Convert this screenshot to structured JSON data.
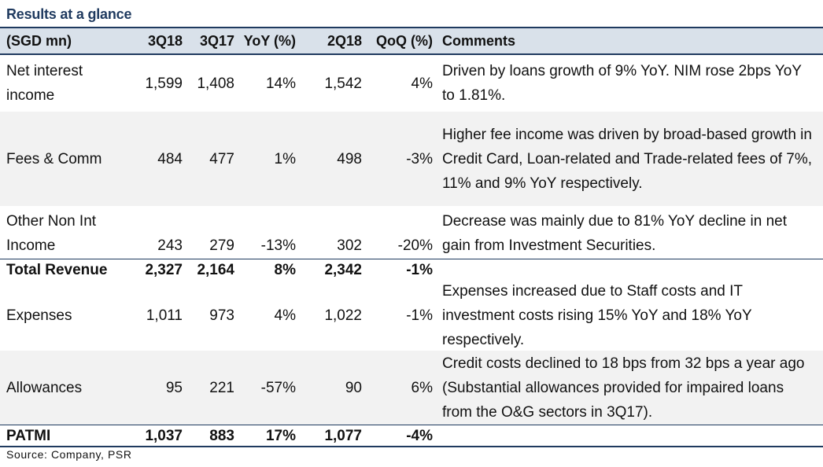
{
  "title": "Results at a glance",
  "header": {
    "label": "(SGD mn)",
    "col_3q18": "3Q18",
    "col_3q17": "3Q17",
    "col_yoy": "YoY (%)",
    "col_2q18": "2Q18",
    "col_qoq": "QoQ (%)",
    "col_comments": "Comments"
  },
  "rows": [
    {
      "label": "Net interest income",
      "q3_18": "1,599",
      "q3_17": "1,408",
      "yoy": "14%",
      "q2_18": "1,542",
      "qoq": "4%",
      "comment": "Driven by loans growth of 9% YoY. NIM rose 2bps YoY to 1.81%."
    },
    {
      "label": "Fees & Comm",
      "q3_18": "484",
      "q3_17": "477",
      "yoy": "1%",
      "q2_18": "498",
      "qoq": "-3%",
      "comment": "Higher fee income was driven by broad-based growth in Credit Card, Loan-related and Trade-related fees of 7%, 11% and 9% YoY respectively."
    },
    {
      "label": "Other Non Int Income",
      "q3_18": "243",
      "q3_17": "279",
      "yoy": "-13%",
      "q2_18": "302",
      "qoq": "-20%",
      "comment": "Decrease was mainly due to 81% YoY decline in net gain from Investment Securities."
    },
    {
      "label": "Total Revenue",
      "q3_18": "2,327",
      "q3_17": "2,164",
      "yoy": "8%",
      "q2_18": "2,342",
      "qoq": "-1%",
      "comment": ""
    },
    {
      "label": "Expenses",
      "q3_18": "1,011",
      "q3_17": "973",
      "yoy": "4%",
      "q2_18": "1,022",
      "qoq": "-1%",
      "comment": "Expenses increased due to Staff costs and IT investment costs rising 15% YoY and 18% YoY respectively."
    },
    {
      "label": "Allowances",
      "q3_18": "95",
      "q3_17": "221",
      "yoy": "-57%",
      "q2_18": "90",
      "qoq": "6%",
      "comment": "Credit costs declined to 18 bps from 32 bps a year ago (Substantial allowances provided for impaired loans from the O&G sectors in 3Q17)."
    },
    {
      "label": "PATMI",
      "q3_18": "1,037",
      "q3_17": "883",
      "yoy": "17%",
      "q2_18": "1,077",
      "qoq": "-4%",
      "comment": ""
    }
  ],
  "source": "Source: Company, PSR"
}
